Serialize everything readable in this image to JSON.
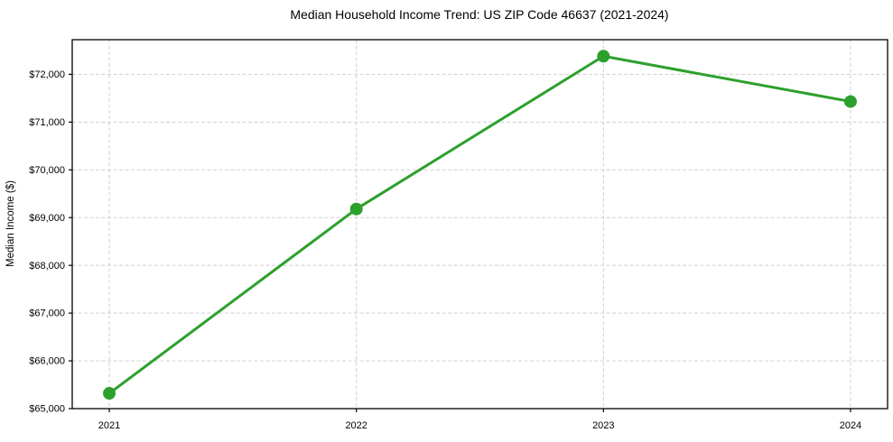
{
  "figure": {
    "background": "#ffffff"
  },
  "chart_data": {
    "type": "line",
    "title": "Median Household Income Trend: US ZIP Code 46637 (2021-2024)",
    "xlabel": "",
    "ylabel": "Median Income ($)",
    "x": [
      2021,
      2022,
      2023,
      2024
    ],
    "x_tick_labels": [
      "2021",
      "2022",
      "2023",
      "2024"
    ],
    "series": [
      {
        "values": [
          65320,
          69180,
          72380,
          71430
        ],
        "color": "#2ca02c",
        "marker": "circle",
        "marker_radius": 7,
        "line_width": 3
      }
    ],
    "xlim": [
      2020.85,
      2024.15
    ],
    "ylim": [
      65000,
      72725
    ],
    "yticks": [
      65000,
      66000,
      67000,
      68000,
      69000,
      70000,
      71000,
      72000
    ],
    "y_tick_labels": [
      "$65,000",
      "$66,000",
      "$67,000",
      "$68,000",
      "$69,000",
      "$70,000",
      "$71,000",
      "$72,000"
    ],
    "grid": true,
    "grid_style": "dashed",
    "grid_color": "#d0d0d0",
    "axis_color": "#000000",
    "legend_position": "none"
  }
}
